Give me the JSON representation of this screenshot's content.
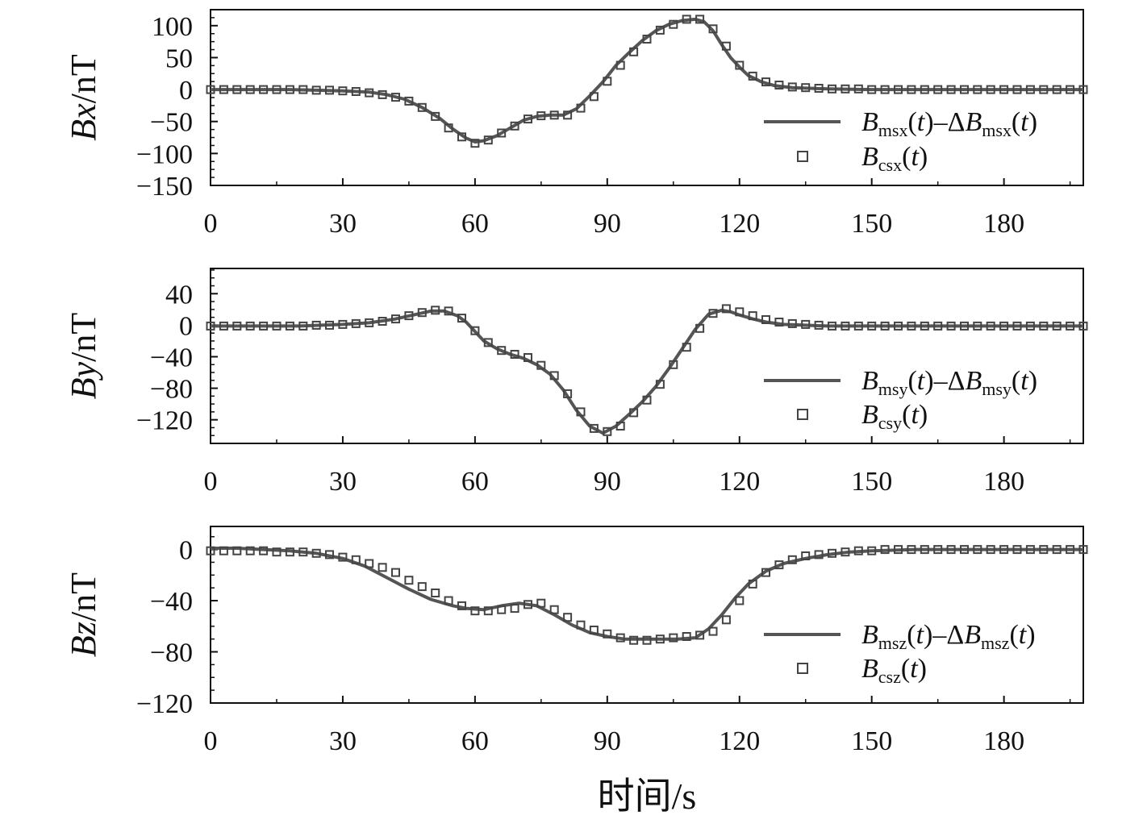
{
  "figure": {
    "xlabel": "时间/s"
  },
  "chart_data": [
    {
      "type": "line",
      "panel": "top",
      "ylabel": {
        "main": "B",
        "var": "x",
        "unit": "/nT"
      },
      "xlim": [
        0,
        198
      ],
      "ylim": [
        -150,
        125
      ],
      "xticks": [
        0,
        30,
        60,
        90,
        120,
        150,
        180
      ],
      "yticks": [
        -150,
        -100,
        -50,
        0,
        50,
        100
      ],
      "legend_position": "right",
      "series": [
        {
          "name": "Bmsx(t)–ΔBmsx(t)",
          "legend": {
            "pre": "B",
            "sub1": "msx",
            "mid": "(t)–ΔB",
            "sub2": "msx",
            "post": "(t)"
          },
          "style": "line",
          "color": "#555555",
          "x": [
            0,
            6,
            12,
            18,
            24,
            30,
            36,
            40,
            44,
            48,
            52,
            55,
            58,
            60,
            62,
            65,
            68,
            71,
            74,
            77,
            80,
            83,
            86,
            89,
            92,
            95,
            98,
            101,
            104,
            107,
            110,
            112,
            114,
            116,
            118,
            120,
            122,
            125,
            128,
            132,
            136,
            140,
            150,
            160,
            170,
            180,
            198
          ],
          "y": [
            0,
            0,
            0,
            0,
            -1,
            -2,
            -4,
            -8,
            -15,
            -28,
            -45,
            -62,
            -76,
            -82,
            -80,
            -72,
            -60,
            -48,
            -42,
            -40,
            -40,
            -30,
            -10,
            12,
            38,
            58,
            77,
            92,
            102,
            108,
            110,
            106,
            92,
            70,
            50,
            35,
            22,
            12,
            6,
            3,
            2,
            1,
            0,
            0,
            0,
            0,
            0
          ]
        },
        {
          "name": "Bcsx(t)",
          "legend": {
            "pre": "B",
            "sub1": "csx",
            "mid": "(t)",
            "sub2": "",
            "post": ""
          },
          "style": "markers",
          "color": "#444444",
          "x": [
            0,
            3,
            6,
            9,
            12,
            15,
            18,
            21,
            24,
            27,
            30,
            33,
            36,
            39,
            42,
            45,
            48,
            51,
            54,
            57,
            60,
            63,
            66,
            69,
            72,
            75,
            78,
            81,
            84,
            87,
            90,
            93,
            96,
            99,
            102,
            105,
            108,
            111,
            114,
            117,
            120,
            123,
            126,
            129,
            132,
            135,
            138,
            141,
            144,
            147,
            150,
            153,
            156,
            159,
            162,
            165,
            168,
            171,
            174,
            177,
            180,
            183,
            186,
            189,
            192,
            195,
            198
          ],
          "y": [
            0,
            0,
            0,
            0,
            0,
            0,
            0,
            0,
            -1,
            -1,
            -2,
            -3,
            -5,
            -8,
            -12,
            -18,
            -28,
            -42,
            -60,
            -74,
            -84,
            -79,
            -68,
            -57,
            -46,
            -41,
            -40,
            -40,
            -29,
            -11,
            13,
            38,
            59,
            79,
            93,
            102,
            110,
            110,
            95,
            68,
            38,
            21,
            12,
            7,
            4,
            3,
            2,
            1,
            1,
            1,
            0,
            0,
            0,
            0,
            0,
            0,
            0,
            0,
            0,
            0,
            0,
            0,
            0,
            0,
            0,
            0,
            0
          ]
        }
      ]
    },
    {
      "type": "line",
      "panel": "middle",
      "ylabel": {
        "main": "B",
        "var": "y",
        "unit": "/nT"
      },
      "xlim": [
        0,
        198
      ],
      "ylim": [
        -150,
        72
      ],
      "xticks": [
        0,
        30,
        60,
        90,
        120,
        150,
        180
      ],
      "yticks": [
        -120,
        -80,
        -40,
        0,
        40
      ],
      "legend_position": "right",
      "series": [
        {
          "name": "Bmsy(t)–ΔBmsy(t)",
          "legend": {
            "pre": "B",
            "sub1": "msy",
            "mid": "(t)–ΔB",
            "sub2": "msy",
            "post": "(t)"
          },
          "style": "line",
          "color": "#555555",
          "x": [
            0,
            10,
            20,
            30,
            36,
            42,
            46,
            50,
            53,
            56,
            58,
            60,
            62,
            65,
            68,
            71,
            74,
            77,
            80,
            83,
            86,
            89,
            92,
            95,
            98,
            101,
            104,
            107,
            110,
            113,
            116,
            118,
            120,
            123,
            126,
            130,
            135,
            140,
            150,
            160,
            180,
            198
          ],
          "y": [
            -1,
            -1,
            -1,
            1,
            3,
            8,
            13,
            18,
            18,
            12,
            4,
            -8,
            -20,
            -30,
            -37,
            -42,
            -50,
            -62,
            -82,
            -108,
            -128,
            -137,
            -128,
            -113,
            -97,
            -78,
            -55,
            -30,
            -5,
            14,
            19,
            17,
            13,
            8,
            4,
            1,
            0,
            -1,
            -1,
            -1,
            -1,
            -1
          ]
        },
        {
          "name": "Bcsy(t)",
          "legend": {
            "pre": "B",
            "sub1": "csy",
            "mid": "(t)",
            "sub2": "",
            "post": ""
          },
          "style": "markers",
          "color": "#444444",
          "x": [
            0,
            3,
            6,
            9,
            12,
            15,
            18,
            21,
            24,
            27,
            30,
            33,
            36,
            39,
            42,
            45,
            48,
            51,
            54,
            57,
            60,
            63,
            66,
            69,
            72,
            75,
            78,
            81,
            84,
            87,
            90,
            93,
            96,
            99,
            102,
            105,
            108,
            111,
            114,
            117,
            120,
            123,
            126,
            129,
            132,
            135,
            138,
            141,
            144,
            147,
            150,
            153,
            156,
            159,
            162,
            165,
            168,
            171,
            174,
            177,
            180,
            183,
            186,
            189,
            192,
            195,
            198
          ],
          "y": [
            -1,
            -1,
            -1,
            -1,
            -1,
            -1,
            -1,
            -1,
            0,
            0,
            1,
            2,
            3,
            5,
            8,
            12,
            16,
            19,
            18,
            9,
            -7,
            -22,
            -32,
            -37,
            -41,
            -51,
            -64,
            -87,
            -110,
            -131,
            -135,
            -128,
            -111,
            -95,
            -75,
            -50,
            -28,
            -4,
            15,
            21,
            17,
            12,
            7,
            4,
            2,
            1,
            0,
            -1,
            -1,
            -1,
            -1,
            -1,
            -1,
            -1,
            -1,
            -1,
            -1,
            -1,
            -1,
            -1,
            -1,
            -1,
            -1,
            -1,
            -1,
            -1,
            -1
          ]
        }
      ]
    },
    {
      "type": "line",
      "panel": "bottom",
      "ylabel": {
        "main": "B",
        "var": "z",
        "unit": "/nT"
      },
      "xlim": [
        0,
        198
      ],
      "ylim": [
        -120,
        18
      ],
      "xticks": [
        0,
        30,
        60,
        90,
        120,
        150,
        180
      ],
      "yticks": [
        -120,
        -80,
        -40,
        0
      ],
      "legend_position": "right",
      "series": [
        {
          "name": "Bmsz(t)–ΔBmsz(t)",
          "legend": {
            "pre": "B",
            "sub1": "msz",
            "mid": "(t)–ΔB",
            "sub2": "msz",
            "post": "(t)"
          },
          "style": "line",
          "color": "#555555",
          "x": [
            0,
            6,
            12,
            18,
            24,
            30,
            35,
            40,
            45,
            50,
            55,
            58,
            62,
            66,
            70,
            74,
            78,
            82,
            86,
            90,
            94,
            98,
            102,
            106,
            110,
            113,
            116,
            119,
            122,
            126,
            130,
            135,
            140,
            145,
            150,
            160,
            170,
            180,
            198
          ],
          "y": [
            1,
            1,
            0,
            -1,
            -3,
            -7,
            -13,
            -22,
            -31,
            -39,
            -44,
            -46,
            -47,
            -44,
            -42,
            -44,
            -51,
            -59,
            -65,
            -68,
            -70,
            -70,
            -70,
            -70,
            -69,
            -62,
            -51,
            -38,
            -27,
            -17,
            -11,
            -7,
            -4,
            -2,
            -1,
            0,
            0,
            0,
            0
          ]
        },
        {
          "name": "Bcsz(t)",
          "legend": {
            "pre": "B",
            "sub1": "csz",
            "mid": "(t)",
            "sub2": "",
            "post": ""
          },
          "style": "markers",
          "color": "#444444",
          "x": [
            0,
            3,
            6,
            9,
            12,
            15,
            18,
            21,
            24,
            27,
            30,
            33,
            36,
            39,
            42,
            45,
            48,
            51,
            54,
            57,
            60,
            63,
            66,
            69,
            72,
            75,
            78,
            81,
            84,
            87,
            90,
            93,
            96,
            99,
            102,
            105,
            108,
            111,
            114,
            117,
            120,
            123,
            126,
            129,
            132,
            135,
            138,
            141,
            144,
            147,
            150,
            153,
            156,
            159,
            162,
            165,
            168,
            171,
            174,
            177,
            180,
            183,
            186,
            189,
            192,
            195,
            198
          ],
          "y": [
            -1,
            -1,
            -1,
            -1,
            -1,
            -2,
            -2,
            -2,
            -3,
            -4,
            -6,
            -8,
            -11,
            -14,
            -18,
            -24,
            -29,
            -34,
            -40,
            -44,
            -48,
            -48,
            -47,
            -46,
            -43,
            -42,
            -47,
            -53,
            -59,
            -63,
            -66,
            -69,
            -71,
            -71,
            -70,
            -69,
            -68,
            -67,
            -64,
            -55,
            -40,
            -27,
            -18,
            -12,
            -8,
            -5,
            -4,
            -3,
            -2,
            -1,
            -1,
            0,
            0,
            0,
            0,
            0,
            0,
            0,
            0,
            0,
            0,
            0,
            0,
            0,
            0,
            0,
            0
          ]
        }
      ]
    }
  ]
}
